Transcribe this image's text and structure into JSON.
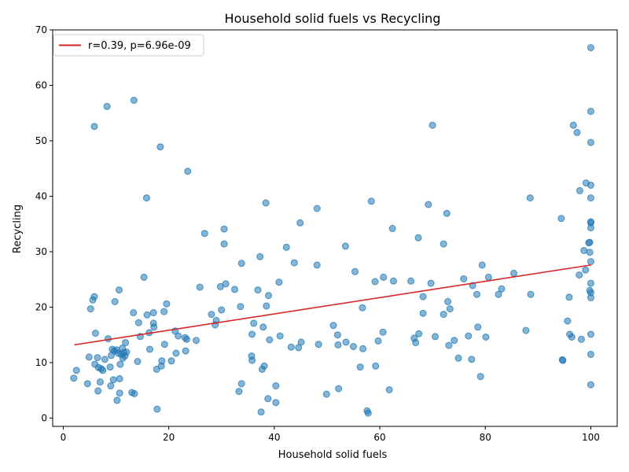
{
  "chart_data": {
    "type": "scatter",
    "title": "Household solid fuels vs Recycling",
    "xlabel": "Household solid fuels",
    "ylabel": "Recycling",
    "xlim": [
      -2,
      105
    ],
    "ylim": [
      -1.5,
      70
    ],
    "xticks": [
      0,
      20,
      40,
      60,
      80,
      100
    ],
    "yticks": [
      0,
      10,
      20,
      30,
      40,
      50,
      60,
      70
    ],
    "grid": false,
    "legend": {
      "position": "top-left",
      "entries": [
        "r=0.39, p=6.96e-09"
      ]
    },
    "colors": {
      "points": "#1f77b4",
      "fit_line": "#d62728"
    },
    "fit_line": {
      "label": "r=0.39, p=6.96e-09",
      "x": [
        2.1,
        100
      ],
      "y": [
        13.2,
        27.6
      ]
    },
    "points": [
      [
        2,
        7.2
      ],
      [
        2.5,
        8.6
      ],
      [
        4.6,
        6.2
      ],
      [
        4.9,
        11
      ],
      [
        5.2,
        19.7
      ],
      [
        5.6,
        21.3
      ],
      [
        5.9,
        52.6
      ],
      [
        5.9,
        21.9
      ],
      [
        6,
        9.7
      ],
      [
        6.1,
        15.3
      ],
      [
        6.5,
        10.9
      ],
      [
        6.6,
        4.9
      ],
      [
        6.7,
        9.1
      ],
      [
        7,
        6.5
      ],
      [
        7.2,
        8.9
      ],
      [
        7.5,
        8.6
      ],
      [
        7.9,
        10.6
      ],
      [
        8.3,
        56.2
      ],
      [
        8.5,
        14.3
      ],
      [
        8.9,
        9.2
      ],
      [
        9,
        5.8
      ],
      [
        9.1,
        11.3
      ],
      [
        9.3,
        12.4
      ],
      [
        9.5,
        6.9
      ],
      [
        9.7,
        12.1
      ],
      [
        9.8,
        21
      ],
      [
        10.1,
        12.3
      ],
      [
        10.2,
        3.2
      ],
      [
        10.4,
        11.7
      ],
      [
        10.6,
        23.1
      ],
      [
        10.7,
        7.1
      ],
      [
        10.7,
        4.5
      ],
      [
        10.8,
        9.7
      ],
      [
        11,
        11.5
      ],
      [
        11.2,
        12.6
      ],
      [
        11.3,
        10.8
      ],
      [
        11.5,
        11.8
      ],
      [
        11.7,
        11.2
      ],
      [
        11.8,
        13.6
      ],
      [
        12,
        11.9
      ],
      [
        13,
        4.6
      ],
      [
        13.3,
        19
      ],
      [
        13.4,
        57.3
      ],
      [
        13.5,
        4.4
      ],
      [
        14.1,
        10.2
      ],
      [
        14.3,
        17.2
      ],
      [
        14.6,
        14.7
      ],
      [
        15.3,
        25.4
      ],
      [
        15.8,
        39.7
      ],
      [
        15.9,
        18.6
      ],
      [
        16.3,
        15.4
      ],
      [
        16.4,
        12.4
      ],
      [
        17.1,
        17.1
      ],
      [
        17.1,
        19
      ],
      [
        17.2,
        16.4
      ],
      [
        17.7,
        8.8
      ],
      [
        17.8,
        1.6
      ],
      [
        18.4,
        48.9
      ],
      [
        18.6,
        9.4
      ],
      [
        18.7,
        10.3
      ],
      [
        19.1,
        19.2
      ],
      [
        19.2,
        13.3
      ],
      [
        19.6,
        20.6
      ],
      [
        20.5,
        10.3
      ],
      [
        21.2,
        15.7
      ],
      [
        21.4,
        11.7
      ],
      [
        21.8,
        14.8
      ],
      [
        23.1,
        14.5
      ],
      [
        23.4,
        14.2
      ],
      [
        23.6,
        44.5
      ],
      [
        23.2,
        12.1
      ],
      [
        25.2,
        14
      ],
      [
        25.9,
        23.6
      ],
      [
        26.8,
        33.3
      ],
      [
        28.1,
        18.7
      ],
      [
        28.8,
        16.8
      ],
      [
        29,
        17.6
      ],
      [
        29.8,
        23.7
      ],
      [
        30,
        19.5
      ],
      [
        30.5,
        34.1
      ],
      [
        30.5,
        31.4
      ],
      [
        30.8,
        24.2
      ],
      [
        32.5,
        23.2
      ],
      [
        33.3,
        4.8
      ],
      [
        33.8,
        6.2
      ],
      [
        33.8,
        27.9
      ],
      [
        33.6,
        20.1
      ],
      [
        35.7,
        11.2
      ],
      [
        35.8,
        15.1
      ],
      [
        35.8,
        10.4
      ],
      [
        36.1,
        17.1
      ],
      [
        36.9,
        23.1
      ],
      [
        37.3,
        29.1
      ],
      [
        37.5,
        1.1
      ],
      [
        37.7,
        8.8
      ],
      [
        37.9,
        16.4
      ],
      [
        38.1,
        9.4
      ],
      [
        38.4,
        38.8
      ],
      [
        38.5,
        20.2
      ],
      [
        38.8,
        3.5
      ],
      [
        38.9,
        22.1
      ],
      [
        39.1,
        14.1
      ],
      [
        40.3,
        5.8
      ],
      [
        40.3,
        2.8
      ],
      [
        40.9,
        24.5
      ],
      [
        41.1,
        14.8
      ],
      [
        42.3,
        30.8
      ],
      [
        43.2,
        12.8
      ],
      [
        43.8,
        28
      ],
      [
        44.6,
        12.7
      ],
      [
        44.9,
        35.2
      ],
      [
        45.1,
        13.7
      ],
      [
        48.1,
        37.8
      ],
      [
        48.1,
        27.6
      ],
      [
        48.4,
        13.3
      ],
      [
        49.9,
        4.3
      ],
      [
        51.2,
        16.7
      ],
      [
        52,
        15
      ],
      [
        52.1,
        13.2
      ],
      [
        52.2,
        5.3
      ],
      [
        53.5,
        31
      ],
      [
        53.6,
        13.7
      ],
      [
        55,
        12.9
      ],
      [
        55.3,
        26.4
      ],
      [
        56.3,
        9.2
      ],
      [
        56.7,
        19.9
      ],
      [
        56.8,
        12.5
      ],
      [
        57.6,
        1.3
      ],
      [
        57.8,
        0.9
      ],
      [
        58.4,
        39.1
      ],
      [
        59.1,
        24.6
      ],
      [
        59.2,
        9.4
      ],
      [
        59.7,
        13.9
      ],
      [
        60.6,
        15.5
      ],
      [
        60.7,
        25.4
      ],
      [
        61.8,
        5.1
      ],
      [
        62.4,
        34.2
      ],
      [
        62.6,
        24.7
      ],
      [
        65.9,
        24.7
      ],
      [
        66.5,
        14.4
      ],
      [
        66.8,
        13.6
      ],
      [
        67.4,
        15.2
      ],
      [
        67.3,
        32.5
      ],
      [
        68.2,
        18.9
      ],
      [
        68.2,
        21.9
      ],
      [
        69.2,
        38.5
      ],
      [
        69.7,
        24.3
      ],
      [
        70,
        52.8
      ],
      [
        70.5,
        14.7
      ],
      [
        72.1,
        18.7
      ],
      [
        72.1,
        31.4
      ],
      [
        72.7,
        36.9
      ],
      [
        72.9,
        21
      ],
      [
        73.1,
        13.1
      ],
      [
        73.3,
        19.7
      ],
      [
        74.1,
        14
      ],
      [
        74.9,
        10.8
      ],
      [
        75.9,
        25.1
      ],
      [
        76.8,
        14.8
      ],
      [
        77.4,
        10.6
      ],
      [
        77.6,
        23.9
      ],
      [
        78.4,
        22.3
      ],
      [
        78.6,
        16.4
      ],
      [
        79.1,
        7.5
      ],
      [
        79.4,
        27.6
      ],
      [
        80.1,
        14.6
      ],
      [
        80.6,
        25.4
      ],
      [
        82.5,
        22.3
      ],
      [
        83.1,
        23.3
      ],
      [
        85.4,
        26.1
      ],
      [
        87.7,
        15.8
      ],
      [
        88.5,
        39.7
      ],
      [
        88.6,
        22.3
      ],
      [
        94.4,
        36
      ],
      [
        94.6,
        10.5
      ],
      [
        94.7,
        10.4
      ],
      [
        95.6,
        17.5
      ],
      [
        95.9,
        21.8
      ],
      [
        96,
        15.1
      ],
      [
        96.4,
        14.6
      ],
      [
        96.7,
        52.8
      ],
      [
        97.4,
        51.5
      ],
      [
        97.8,
        25.8
      ],
      [
        97.9,
        41
      ],
      [
        98.2,
        14.2
      ],
      [
        98.7,
        30.2
      ],
      [
        99,
        26.7
      ],
      [
        99.1,
        42.4
      ],
      [
        99.6,
        31.6
      ],
      [
        99.8,
        31.7
      ],
      [
        99.8,
        29.9
      ],
      [
        99.8,
        23
      ],
      [
        100,
        66.8
      ],
      [
        100,
        55.3
      ],
      [
        100,
        49.7
      ],
      [
        100,
        42
      ],
      [
        100,
        39.7
      ],
      [
        100,
        35.4
      ],
      [
        100,
        35.2
      ],
      [
        100,
        34.3
      ],
      [
        100,
        28.2
      ],
      [
        100,
        24.3
      ],
      [
        100,
        22.6
      ],
      [
        100,
        21.7
      ],
      [
        100,
        15.1
      ],
      [
        100,
        11.5
      ],
      [
        100,
        6
      ]
    ]
  }
}
